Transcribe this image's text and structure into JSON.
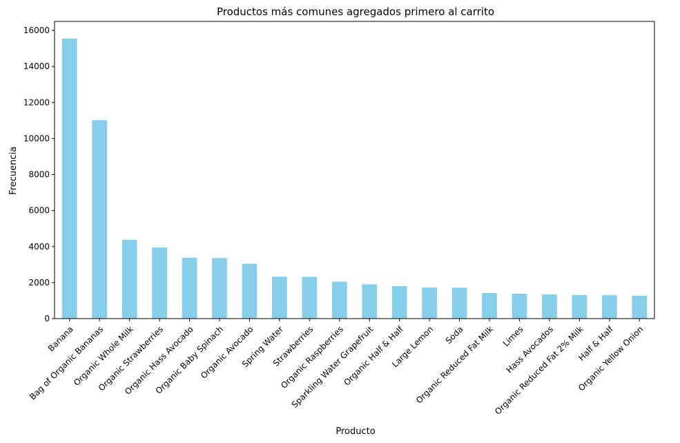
{
  "chart_data": {
    "type": "bar",
    "title": "Productos más comunes agregados primero al carrito",
    "xlabel": "Producto",
    "ylabel": "Frecuencia",
    "ylim": [
      0,
      16500
    ],
    "yticks": [
      0,
      2000,
      4000,
      6000,
      8000,
      10000,
      12000,
      14000,
      16000
    ],
    "grid": false,
    "legend": "none",
    "bar_color": "#87ceeb",
    "categories": [
      "Banana",
      "Bag of Organic Bananas",
      "Organic Whole Milk",
      "Organic Strawberries",
      "Organic Hass Avocado",
      "Organic Baby Spinach",
      "Organic Avocado",
      "Spring Water",
      "Strawberries",
      "Organic Raspberries",
      "Sparkling Water Grapefruit",
      "Organic Half & Half",
      "Large Lemon",
      "Soda",
      "Organic Reduced Fat Milk",
      "Limes",
      "Hass Avocados",
      "Organic Reduced Fat 2% Milk",
      "Half & Half",
      "Organic Yellow Onion"
    ],
    "values": [
      15550,
      11020,
      4370,
      3950,
      3380,
      3360,
      3040,
      2330,
      2320,
      2050,
      1900,
      1800,
      1730,
      1720,
      1420,
      1380,
      1340,
      1310,
      1300,
      1270
    ]
  }
}
